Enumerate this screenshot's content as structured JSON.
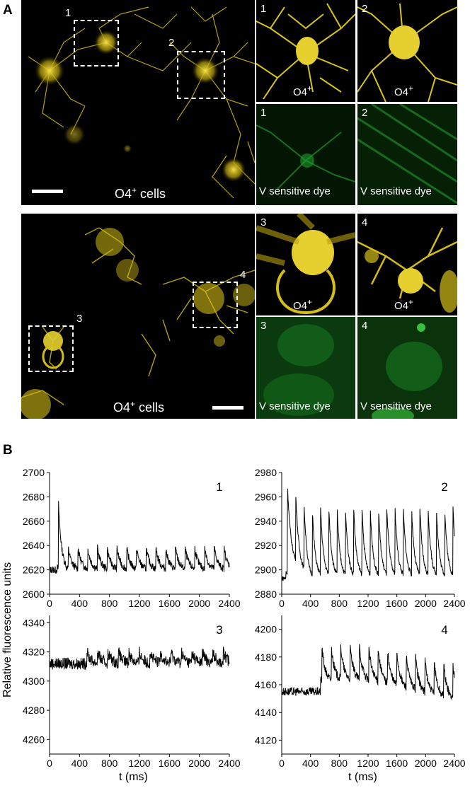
{
  "figure": {
    "panel_a_label": "A",
    "panel_b_label": "B",
    "colors": {
      "yellow_cell": "#e8d020",
      "green_dye": "#1e9e2a",
      "background": "#000000",
      "trace": "#000000"
    }
  },
  "panel_a": {
    "top": {
      "overview_label_main": "O4",
      "overview_label_sup": "+",
      "overview_label_suffix": " cells",
      "roi_labels": [
        "1",
        "2"
      ],
      "tiles": [
        {
          "num": "1",
          "label_main": "O4",
          "label_sup": "+"
        },
        {
          "num": "2",
          "label_main": "O4",
          "label_sup": "+"
        },
        {
          "num": "1",
          "label_main": "V sensitive dye",
          "label_sup": ""
        },
        {
          "num": "2",
          "label_main": "V sensitive dye",
          "label_sup": ""
        }
      ]
    },
    "bottom": {
      "overview_label_main": "O4",
      "overview_label_sup": "+",
      "overview_label_suffix": " cells",
      "roi_labels": [
        "3",
        "4"
      ],
      "tiles": [
        {
          "num": "3",
          "label_main": "O4",
          "label_sup": "+"
        },
        {
          "num": "4",
          "label_main": "O4",
          "label_sup": "+"
        },
        {
          "num": "3",
          "label_main": "V sensitive dye",
          "label_sup": ""
        },
        {
          "num": "4",
          "label_main": "V sensitive dye",
          "label_sup": ""
        }
      ]
    }
  },
  "panel_b": {
    "ylabel": "Relative fluorescence units",
    "xlabel": "t (ms)"
  },
  "chart_data": [
    {
      "type": "line",
      "id": "1",
      "label": "1",
      "xlim": [
        0,
        2400
      ],
      "ylim": [
        2600,
        2700
      ],
      "xticks": [
        0,
        400,
        800,
        1200,
        1600,
        2000,
        2400
      ],
      "yticks": [
        2600,
        2620,
        2640,
        2660,
        2680,
        2700
      ],
      "xlabel": "",
      "ylabel": "",
      "series": [
        {
          "baseline": 2620,
          "period": 130,
          "amplitude": 18,
          "first_peak_x": 120,
          "first_peak_y": 2674,
          "noise": 3
        }
      ]
    },
    {
      "type": "line",
      "id": "2",
      "label": "2",
      "xlim": [
        0,
        2400
      ],
      "ylim": [
        2880,
        2980
      ],
      "xticks": [
        0,
        400,
        800,
        1200,
        1600,
        2000,
        2400
      ],
      "yticks": [
        2880,
        2900,
        2920,
        2940,
        2960,
        2980
      ],
      "xlabel": "",
      "ylabel": "",
      "series": [
        {
          "baseline": 2893,
          "period": 115,
          "amplitude": 58,
          "first_peak_x": 80,
          "first_peak_y": 2961,
          "noise": 2
        }
      ]
    },
    {
      "type": "line",
      "id": "3",
      "label": "3",
      "xlim": [
        0,
        2400
      ],
      "ylim": [
        4250,
        4345
      ],
      "xticks": [
        0,
        400,
        800,
        1200,
        1600,
        2000,
        2400
      ],
      "yticks": [
        4260,
        4280,
        4300,
        4320,
        4340
      ],
      "xlabel": "t (ms)",
      "ylabel": "",
      "series": [
        {
          "baseline": 4312,
          "period": 140,
          "amplitude": 8,
          "first_peak_x": 500,
          "first_peak_y": 4334,
          "noise": 4
        }
      ]
    },
    {
      "type": "line",
      "id": "4",
      "label": "4",
      "xlim": [
        0,
        2400
      ],
      "ylim": [
        4110,
        4210
      ],
      "xticks": [
        0,
        400,
        800,
        1200,
        1600,
        2000,
        2400
      ],
      "yticks": [
        4120,
        4140,
        4160,
        4180,
        4200
      ],
      "xlabel": "t (ms)",
      "ylabel": "",
      "series": [
        {
          "baseline": 4155,
          "period": 130,
          "amplitude": 25,
          "first_peak_x": 560,
          "first_peak_y": 4195,
          "noise": 3
        }
      ]
    }
  ]
}
